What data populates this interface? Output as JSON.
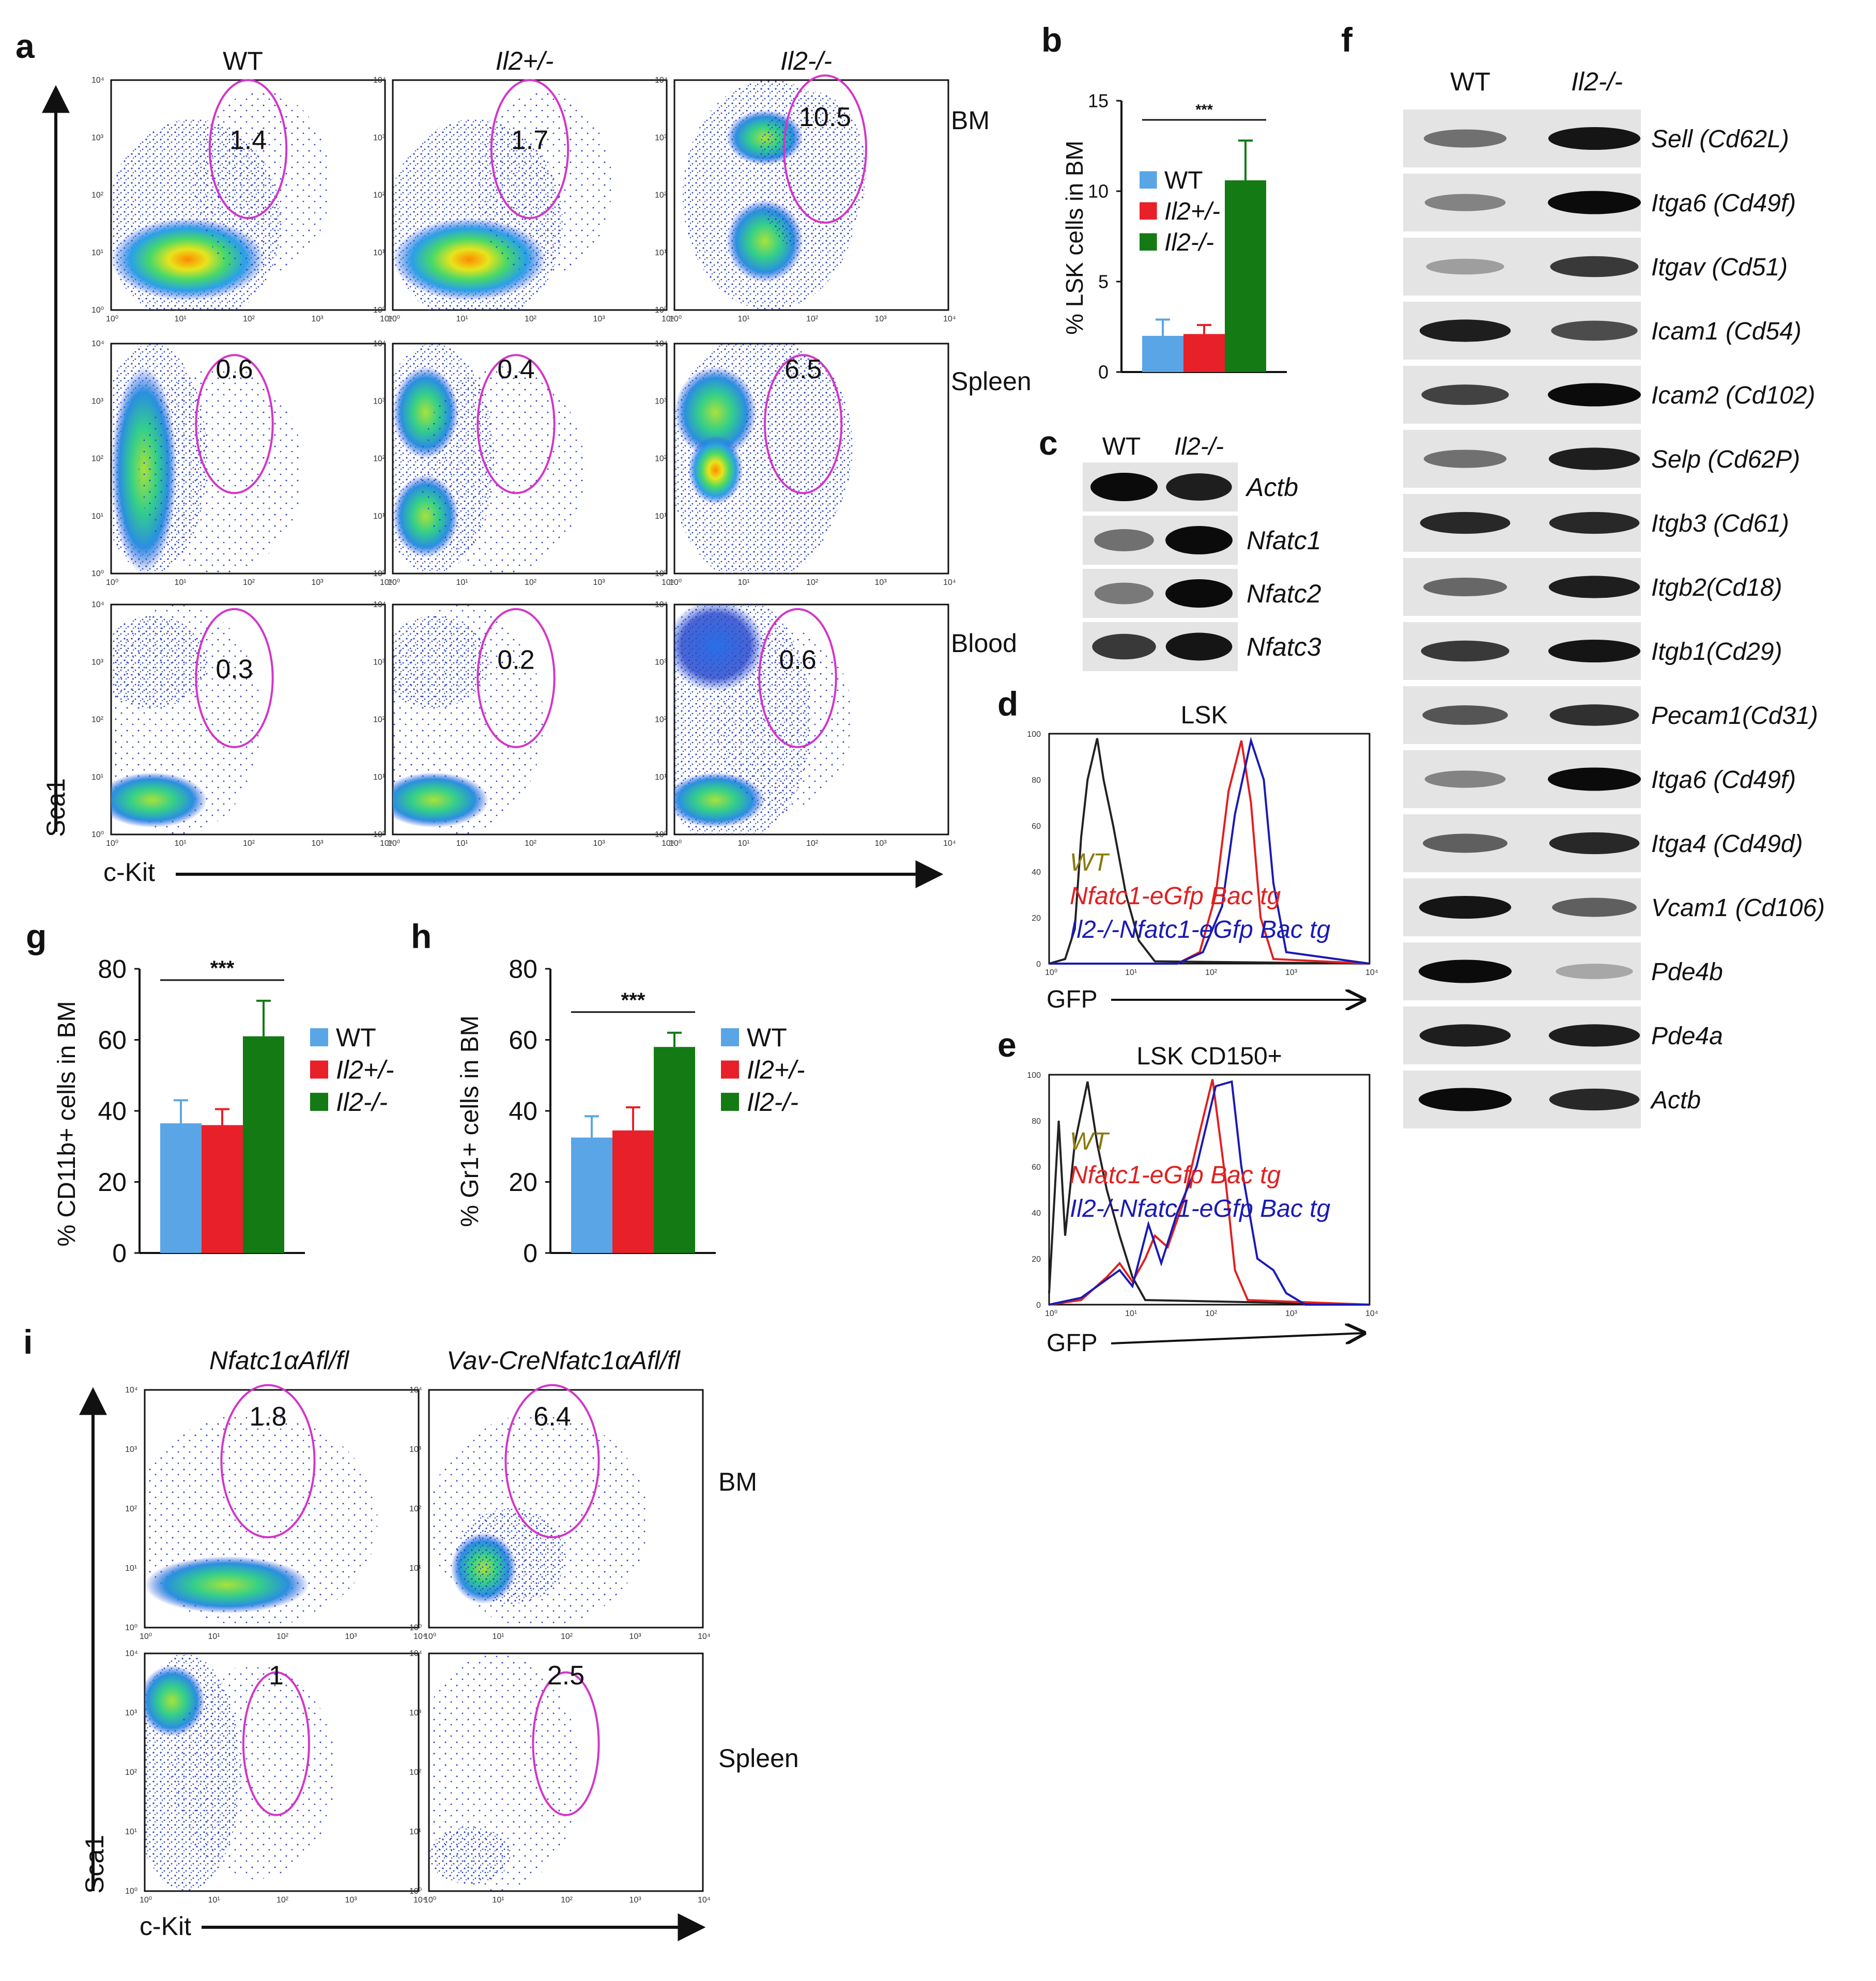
{
  "colors": {
    "wt": "#5aa5e6",
    "het": "#e8202a",
    "ko": "#137a14",
    "gate": "#d236c8",
    "ko_line": "#1a1ab4",
    "tg_line": "#e02020",
    "wt_line": "#222222",
    "wt_legend": "#8a7a10"
  },
  "panel_a": {
    "label": "a",
    "columns": [
      "WT",
      "Il2+/-",
      "Il2-/-"
    ],
    "rows": [
      "BM",
      "Spleen",
      "Blood"
    ],
    "percents": [
      [
        "1.4",
        "1.7",
        "10.5"
      ],
      [
        "0.6",
        "0.4",
        "6.5"
      ],
      [
        "0.3",
        "0.2",
        "0.6"
      ]
    ],
    "y_axis": "Sca1",
    "x_axis": "c-Kit",
    "ticks": [
      "10⁰",
      "10¹",
      "10²",
      "10³",
      "10⁴"
    ]
  },
  "panel_b": {
    "label": "b",
    "chart_data": {
      "type": "bar",
      "categories": [
        "WT",
        "Il2+/-",
        "Il2-/-"
      ],
      "values": [
        2.0,
        2.1,
        10.6
      ],
      "errors": [
        0.9,
        0.5,
        2.2
      ],
      "ylabel": "% LSK cells in BM",
      "ylim": [
        0,
        15
      ],
      "yticks": [
        "0",
        "5",
        "10",
        "15"
      ],
      "significance": "***"
    }
  },
  "panel_c": {
    "label": "c",
    "columns": [
      "WT",
      "Il2-/-"
    ],
    "genes": [
      "Actb",
      "Nfatc1",
      "Nfatc2",
      "Nfatc3"
    ],
    "intensity": [
      [
        1.0,
        0.9
      ],
      [
        0.45,
        1.0
      ],
      [
        0.4,
        1.0
      ],
      [
        0.75,
        0.95
      ]
    ]
  },
  "panel_d": {
    "label": "d",
    "title": "LSK",
    "x_axis": "GFP",
    "legend": [
      "WT",
      "Nfatc1-eGfp Bac tg",
      "Il2-/-Nfatc1-eGfp Bac tg"
    ],
    "yticks": [
      "0",
      "20",
      "40",
      "60",
      "80",
      "100"
    ],
    "xticks": [
      "10⁰",
      "10¹",
      "10²",
      "10³",
      "10⁴"
    ]
  },
  "panel_e": {
    "label": "e",
    "title": "LSK CD150+",
    "x_axis": "GFP",
    "legend": [
      "WT",
      "Nfatc1-eGfp Bac tg",
      "Il2-/-Nfatc1-eGfp Bac tg"
    ],
    "yticks": [
      "0",
      "20",
      "40",
      "60",
      "80",
      "100"
    ],
    "xticks": [
      "10⁰",
      "10¹",
      "10²",
      "10³",
      "10⁴"
    ]
  },
  "panel_f": {
    "label": "f",
    "columns": [
      "WT",
      "Il2-/-"
    ],
    "genes": [
      "Sell (Cd62L)",
      "Itga6 (Cd49f)",
      "Itgav (Cd51)",
      "Icam1 (Cd54)",
      "Icam2 (Cd102)",
      "Selp (Cd62P)",
      "Itgb3 (Cd61)",
      "Itgb2(Cd18)",
      "Itgb1(Cd29)",
      "Pecam1(Cd31)",
      "Itga6 (Cd49f)",
      "Itga4 (Cd49d)",
      "Vcam1 (Cd106)",
      "Pde4b",
      "Pde4a",
      "Actb"
    ],
    "intensity": [
      [
        0.45,
        0.95
      ],
      [
        0.35,
        1.0
      ],
      [
        0.2,
        0.75
      ],
      [
        0.9,
        0.65
      ],
      [
        0.7,
        1.0
      ],
      [
        0.45,
        0.9
      ],
      [
        0.85,
        0.85
      ],
      [
        0.5,
        0.9
      ],
      [
        0.75,
        0.95
      ],
      [
        0.6,
        0.8
      ],
      [
        0.35,
        1.0
      ],
      [
        0.55,
        0.85
      ],
      [
        0.95,
        0.55
      ],
      [
        1.0,
        0.15
      ],
      [
        0.9,
        0.9
      ],
      [
        1.0,
        0.85
      ]
    ]
  },
  "panel_g": {
    "label": "g",
    "chart_data": {
      "type": "bar",
      "categories": [
        "WT",
        "Il2+/-",
        "Il2-/-"
      ],
      "values": [
        36.5,
        36,
        61
      ],
      "errors": [
        6.5,
        4.5,
        10
      ],
      "ylabel": "% CD11b+ cells in BM",
      "ylim": [
        0,
        80
      ],
      "yticks": [
        "0",
        "20",
        "40",
        "60",
        "80"
      ],
      "significance": "***"
    }
  },
  "panel_h": {
    "label": "h",
    "chart_data": {
      "type": "bar",
      "categories": [
        "WT",
        "Il2+/-",
        "Il2-/-"
      ],
      "values": [
        32.5,
        34.5,
        58
      ],
      "errors": [
        6,
        6.5,
        4
      ],
      "ylabel": "% Gr1+ cells in BM",
      "ylim": [
        0,
        80
      ],
      "yticks": [
        "0",
        "20",
        "40",
        "60",
        "80"
      ],
      "significance": "***"
    }
  },
  "panel_i": {
    "label": "i",
    "columns": [
      "Nfatc1αAfl/fl",
      "Vav-CreNfatc1αAfl/fl"
    ],
    "rows": [
      "BM",
      "Spleen"
    ],
    "percents": [
      [
        "1.8",
        "6.4"
      ],
      [
        "1",
        "2.5"
      ]
    ],
    "y_axis": "Sca1",
    "x_axis": "c-Kit"
  }
}
